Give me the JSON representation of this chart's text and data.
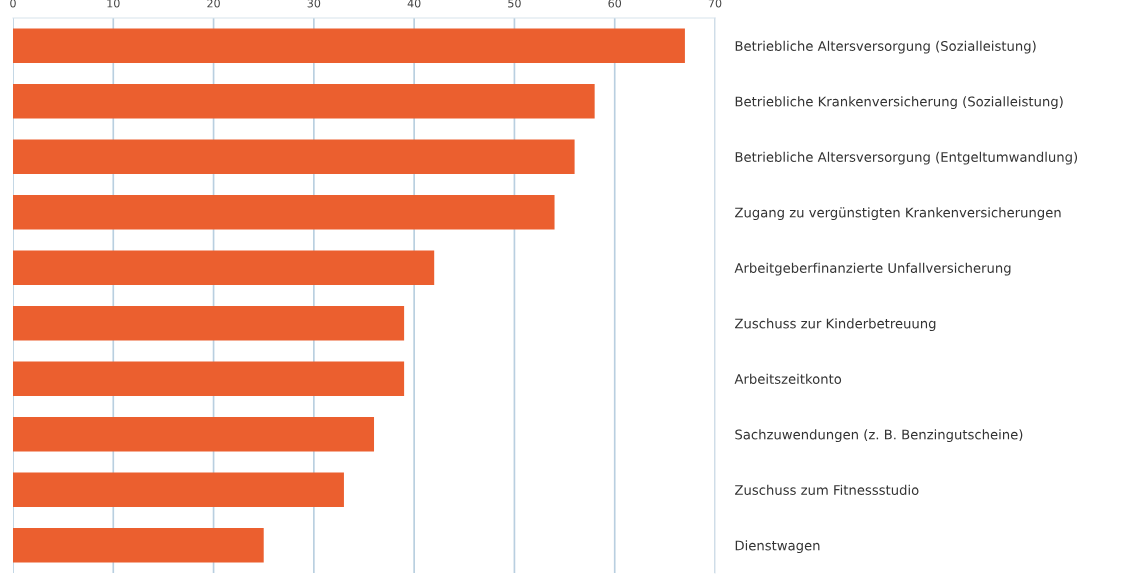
{
  "chart_data": {
    "type": "bar",
    "orientation": "horizontal",
    "categories": [
      "Betriebliche Altersversorgung (Sozialleistung)",
      "Betriebliche Krankenversicherung (Sozialleistung)",
      "Betriebliche Altersversorgung (Entgeltumwandlung)",
      "Zugang zu vergünstigten Krankenversicherungen",
      "Arbeitgeberfinanzierte Unfallversicherung",
      "Zuschuss zur Kinderbetreuung",
      "Arbeitszeitkonto",
      "Sachzuwendungen (z. B. Benzingutscheine)",
      "Zuschuss zum Fitnessstudio",
      "Dienstwagen"
    ],
    "values": [
      67,
      58,
      56,
      54,
      42,
      39,
      39,
      36,
      33,
      25
    ],
    "color": "#eb5f2f",
    "xlim": [
      0,
      70
    ],
    "xticks": [
      0,
      10,
      20,
      30,
      40,
      50,
      60,
      70
    ],
    "grid": "x"
  }
}
